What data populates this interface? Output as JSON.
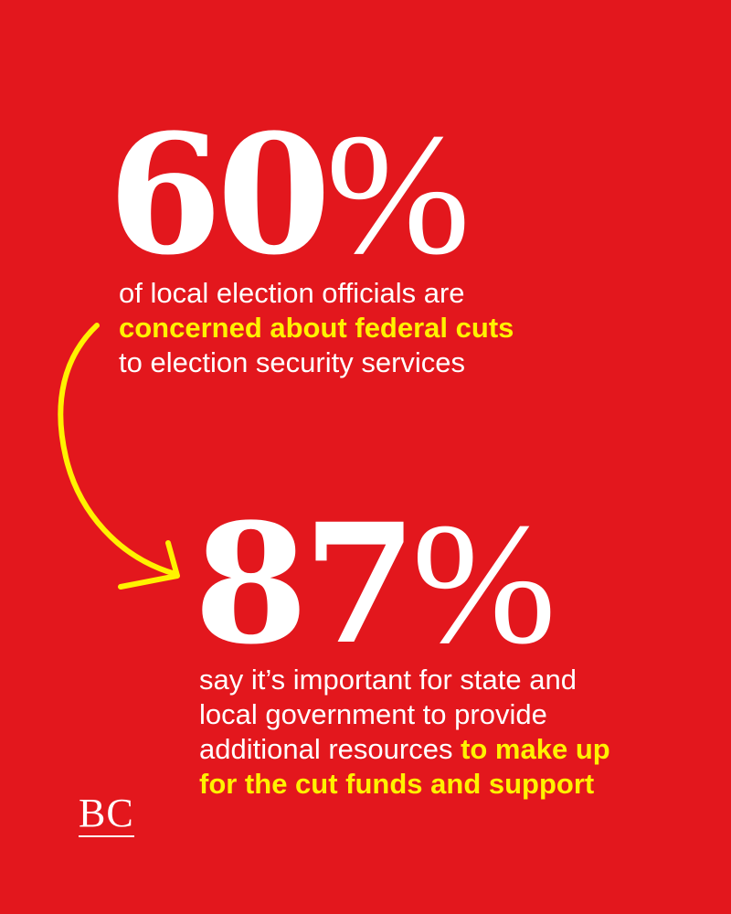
{
  "stat1": {
    "number": "60",
    "symbol": "%",
    "line1": "of local election officials are",
    "line2_highlight": "concerned about federal cuts",
    "line3": "to election security services"
  },
  "stat2": {
    "number": "87",
    "symbol": "%",
    "line1": "say it’s important for state and",
    "line2": "local government to provide",
    "line3_plain": "additional resources ",
    "line3_highlight": "to make up",
    "line4_highlight": "for the cut funds and support"
  },
  "brand": {
    "logo_text": "BC"
  },
  "colors": {
    "background": "#e3171d",
    "highlight": "#fff200",
    "text": "#ffffff"
  },
  "icons": {
    "connector": "curved-arrow-icon"
  }
}
